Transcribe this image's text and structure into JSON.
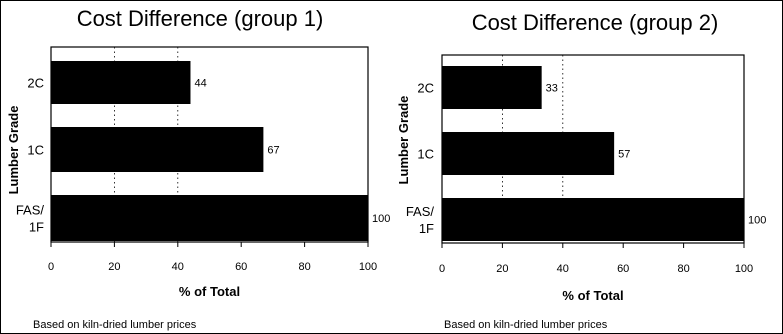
{
  "chart_data": [
    {
      "type": "bar",
      "orientation": "horizontal",
      "title": "Cost Difference (group 1)",
      "xlabel": "% of Total",
      "ylabel": "Lumber Grade",
      "categories": [
        "2C",
        "1C",
        "FAS/ 1F"
      ],
      "category_lines": [
        [
          "2C"
        ],
        [
          "1C"
        ],
        [
          "FAS/",
          "1F"
        ]
      ],
      "values": [
        44,
        67,
        100
      ],
      "data_labels": [
        "44",
        "67",
        "100"
      ],
      "xlim": [
        0,
        100
      ],
      "xticks": [
        "0",
        "20",
        "40",
        "60",
        "80",
        "100"
      ],
      "gridlines": "dashed at 20 and 40",
      "bar_color": "#000000",
      "note": "Based on kiln-dried lumber prices"
    },
    {
      "type": "bar",
      "orientation": "horizontal",
      "title": "Cost Difference (group 2)",
      "xlabel": "% of Total",
      "ylabel": "Lumber Grade",
      "categories": [
        "2C",
        "1C",
        "FAS/ 1F"
      ],
      "category_lines": [
        [
          "2C"
        ],
        [
          "1C"
        ],
        [
          "FAS/",
          "1F"
        ]
      ],
      "values": [
        33,
        57,
        100
      ],
      "data_labels": [
        "33",
        "57",
        "100"
      ],
      "xlim": [
        0,
        100
      ],
      "xticks": [
        "0",
        "20",
        "40",
        "60",
        "80",
        "100"
      ],
      "gridlines": "dashed at 20 and 40",
      "bar_color": "#000000",
      "note": "Based on kiln-dried lumber prices"
    }
  ]
}
